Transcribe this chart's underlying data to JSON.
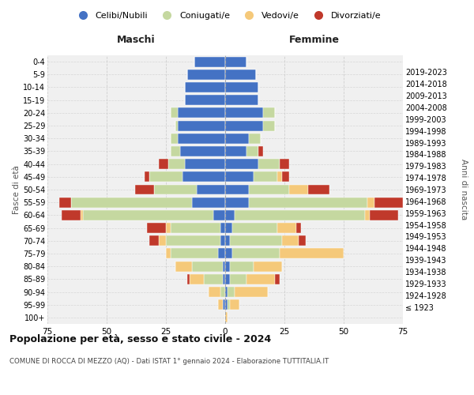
{
  "age_groups": [
    "100+",
    "95-99",
    "90-94",
    "85-89",
    "80-84",
    "75-79",
    "70-74",
    "65-69",
    "60-64",
    "55-59",
    "50-54",
    "45-49",
    "40-44",
    "35-39",
    "30-34",
    "25-29",
    "20-24",
    "15-19",
    "10-14",
    "5-9",
    "0-4"
  ],
  "birth_years": [
    "≤ 1923",
    "1924-1928",
    "1929-1933",
    "1934-1938",
    "1939-1943",
    "1944-1948",
    "1949-1953",
    "1954-1958",
    "1959-1963",
    "1964-1968",
    "1969-1973",
    "1974-1978",
    "1979-1983",
    "1984-1988",
    "1989-1993",
    "1994-1998",
    "1999-2003",
    "2004-2008",
    "2009-2013",
    "2014-2018",
    "2019-2023"
  ],
  "males": {
    "celibi": [
      0,
      1,
      0,
      1,
      1,
      3,
      2,
      2,
      5,
      14,
      12,
      18,
      17,
      19,
      20,
      20,
      20,
      17,
      17,
      16,
      13
    ],
    "coniugati": [
      0,
      0,
      2,
      8,
      13,
      20,
      23,
      21,
      55,
      51,
      18,
      14,
      7,
      4,
      3,
      1,
      3,
      0,
      0,
      0,
      0
    ],
    "vedovi": [
      0,
      2,
      5,
      6,
      7,
      2,
      3,
      2,
      1,
      0,
      0,
      0,
      0,
      0,
      0,
      0,
      0,
      0,
      0,
      0,
      0
    ],
    "divorziati": [
      0,
      0,
      0,
      1,
      0,
      0,
      4,
      8,
      8,
      5,
      8,
      2,
      4,
      0,
      0,
      0,
      0,
      0,
      0,
      0,
      0
    ]
  },
  "females": {
    "nubili": [
      0,
      1,
      1,
      2,
      2,
      3,
      2,
      3,
      4,
      10,
      10,
      12,
      14,
      9,
      10,
      16,
      16,
      14,
      14,
      13,
      9
    ],
    "coniugate": [
      0,
      1,
      3,
      7,
      10,
      20,
      22,
      19,
      55,
      50,
      17,
      10,
      9,
      5,
      5,
      5,
      5,
      0,
      0,
      0,
      0
    ],
    "vedove": [
      1,
      4,
      14,
      12,
      12,
      27,
      7,
      8,
      2,
      3,
      8,
      2,
      0,
      0,
      0,
      0,
      0,
      0,
      0,
      0,
      0
    ],
    "divorziate": [
      0,
      0,
      0,
      2,
      0,
      0,
      3,
      2,
      12,
      12,
      9,
      3,
      4,
      2,
      0,
      0,
      0,
      0,
      0,
      0,
      0
    ]
  },
  "colors": {
    "celibi_nubili": "#4472c4",
    "coniugati_e": "#c5d8a0",
    "vedovi_e": "#f5c97a",
    "divorziati_e": "#c0392b"
  },
  "xlim": 75,
  "title": "Popolazione per età, sesso e stato civile - 2024",
  "subtitle": "COMUNE DI ROCCA DI MEZZO (AQ) - Dati ISTAT 1° gennaio 2024 - Elaborazione TUTTITALIA.IT",
  "xlabel_left": "Maschi",
  "xlabel_right": "Femmine",
  "ylabel_left": "Fasce di età",
  "ylabel_right": "Anni di nascita",
  "legend_labels": [
    "Celibi/Nubili",
    "Coniugati/e",
    "Vedovi/e",
    "Divorziati/e"
  ],
  "bg_color": "#f0f0f0",
  "grid_color": "#cccccc"
}
